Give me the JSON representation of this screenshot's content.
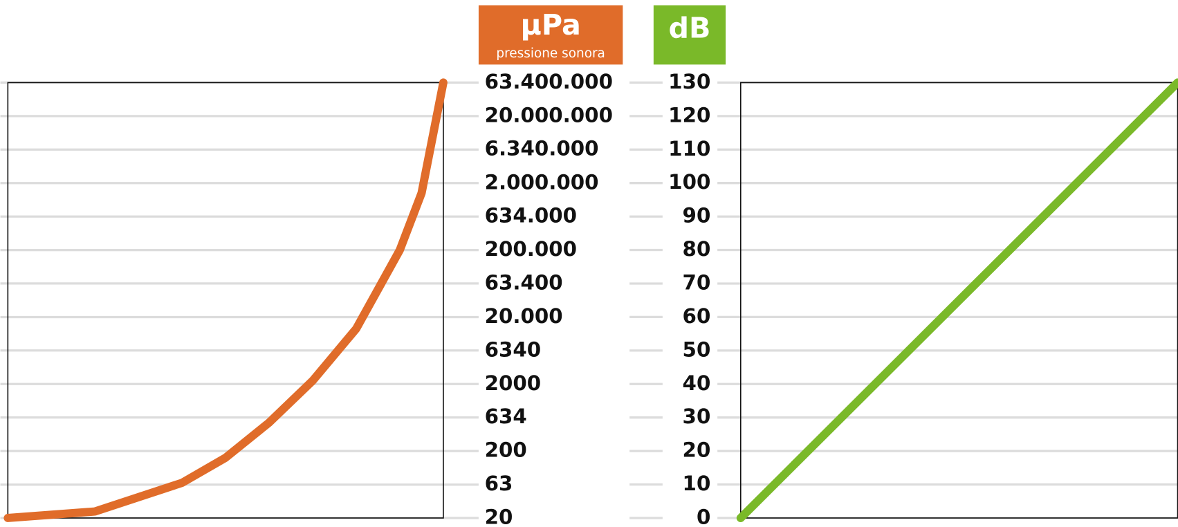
{
  "chart_data": [
    {
      "type": "curve",
      "title": "μPa",
      "subtitle": "pressione sonora",
      "color": "#e06c2a",
      "header_color": "#e06c2a",
      "x": [
        0,
        0.2,
        0.4,
        0.5,
        0.6,
        0.7,
        0.8,
        0.9,
        0.95,
        1
      ],
      "xlim": [
        0,
        1
      ],
      "values": [
        20,
        25,
        67,
        159,
        532,
        2246,
        13400,
        200000,
        1416000,
        63400000
      ],
      "log": true,
      "ylim": [
        20,
        63400000
      ],
      "yticks": [
        {
          "value": 63400000,
          "label": "63.400.000"
        },
        {
          "value": 20000000,
          "label": "20.000.000"
        },
        {
          "value": 6340000,
          "label": "6.340.000"
        },
        {
          "value": 2000000,
          "label": "2.000.000"
        },
        {
          "value": 634000,
          "label": "634.000"
        },
        {
          "value": 200000,
          "label": "200.000"
        },
        {
          "value": 63400,
          "label": "63.400"
        },
        {
          "value": 20000,
          "label": "20.000"
        },
        6340,
        2000,
        634,
        200,
        63,
        20
      ],
      "grid": true
    },
    {
      "type": "line",
      "title": "dB",
      "color": "#7ab929",
      "header_color": "#7ab929",
      "x": [
        0,
        1
      ],
      "xlim": [
        0,
        1
      ],
      "values": [
        0,
        130
      ],
      "ylim": [
        0,
        130
      ],
      "yticks": [
        130,
        120,
        110,
        100,
        90,
        80,
        70,
        60,
        50,
        40,
        30,
        20,
        10,
        0
      ],
      "grid": true
    }
  ]
}
